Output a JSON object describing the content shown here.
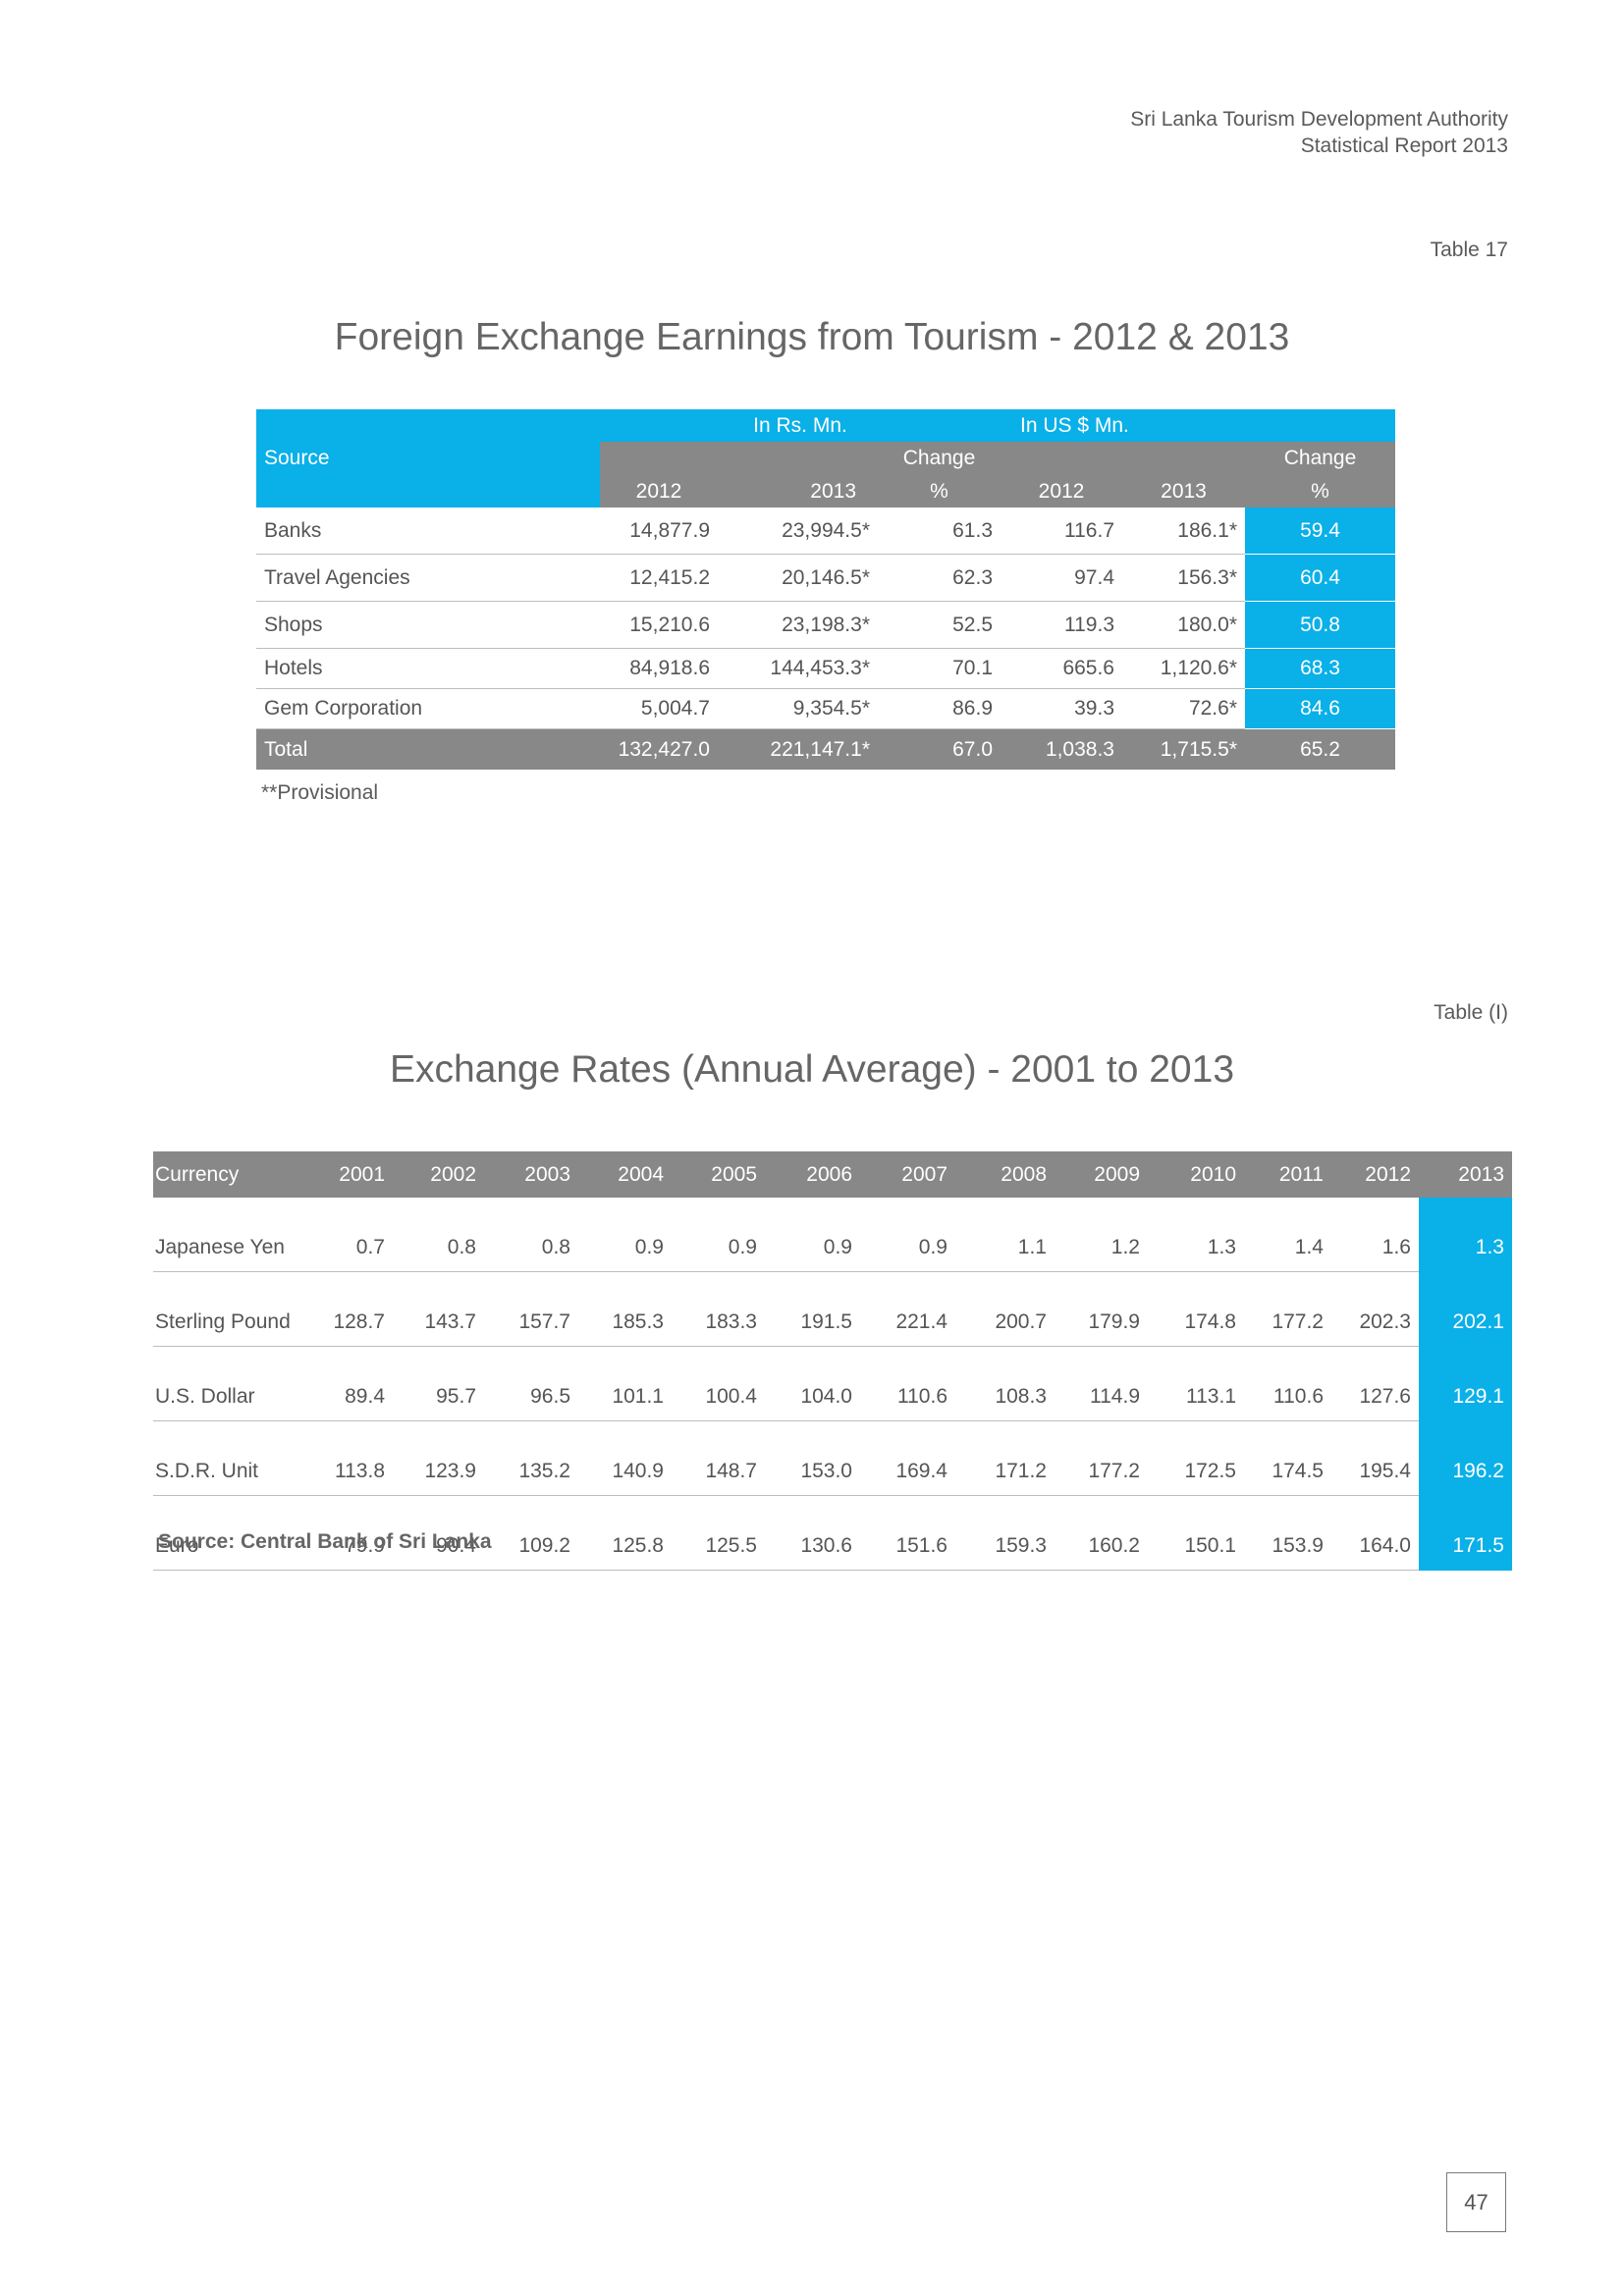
{
  "header": {
    "org": "Sri Lanka Tourism Development Authority",
    "report": "Statistical Report 2013"
  },
  "table17": {
    "label": "Table 17",
    "title": "Foreign Exchange Earnings from Tourism - 2012 & 2013",
    "group_rs": "In Rs. Mn.",
    "group_us": "In US $ Mn.",
    "source_header": "Source",
    "change_word": "Change",
    "pct": "%",
    "y2012": "2012",
    "y2013": "2013",
    "rows": [
      {
        "source": "Banks",
        "rs2012": "14,877.9",
        "rs2013": "23,994.5*",
        "rs_change": "61.3",
        "us2012": "116.7",
        "us2013": "186.1*",
        "us_change": "59.4"
      },
      {
        "source": "Travel Agencies",
        "rs2012": "12,415.2",
        "rs2013": "20,146.5*",
        "rs_change": "62.3",
        "us2012": "97.4",
        "us2013": "156.3*",
        "us_change": "60.4"
      },
      {
        "source": "Shops",
        "rs2012": "15,210.6",
        "rs2013": "23,198.3*",
        "rs_change": "52.5",
        "us2012": "119.3",
        "us2013": "180.0*",
        "us_change": "50.8"
      },
      {
        "source": "Hotels",
        "rs2012": "84,918.6",
        "rs2013": "144,453.3*",
        "rs_change": "70.1",
        "us2012": "665.6",
        "us2013": "1,120.6*",
        "us_change": "68.3"
      },
      {
        "source": "Gem Corporation",
        "rs2012": "5,004.7",
        "rs2013": "9,354.5*",
        "rs_change": "86.9",
        "us2012": "39.3",
        "us2013": "72.6*",
        "us_change": "84.6"
      }
    ],
    "total": {
      "source": "Total",
      "rs2012": "132,427.0",
      "rs2013": "221,147.1*",
      "rs_change": "67.0",
      "us2012": "1,038.3",
      "us2013": "1,715.5*",
      "us_change": "65.2"
    },
    "footnote": "**Provisional"
  },
  "exchange": {
    "label": "Table (I)",
    "title": "Exchange Rates (Annual Average) - 2001 to 2013",
    "currency_header": "Currency",
    "years": [
      "2001",
      "2002",
      "2003",
      "2004",
      "2005",
      "2006",
      "2007",
      "2008",
      "2009",
      "2010",
      "2011",
      "2012",
      "2013"
    ],
    "rows": [
      {
        "currency": "Japanese Yen",
        "values": [
          "0.7",
          "0.8",
          "0.8",
          "0.9",
          "0.9",
          "0.9",
          "0.9",
          "1.1",
          "1.2",
          "1.3",
          "1.4",
          "1.6",
          "1.3"
        ]
      },
      {
        "currency": "Sterling Pound",
        "values": [
          "128.7",
          "143.7",
          "157.7",
          "185.3",
          "183.3",
          "191.5",
          "221.4",
          "200.7",
          "179.9",
          "174.8",
          "177.2",
          "202.3",
          "202.1"
        ]
      },
      {
        "currency": "U.S. Dollar",
        "values": [
          "89.4",
          "95.7",
          "96.5",
          "101.1",
          "100.4",
          "104.0",
          "110.6",
          "108.3",
          "114.9",
          "113.1",
          "110.6",
          "127.6",
          "129.1"
        ]
      },
      {
        "currency": "S.D.R. Unit",
        "values": [
          "113.8",
          "123.9",
          "135.2",
          "140.9",
          "148.7",
          "153.0",
          "169.4",
          "171.2",
          "177.2",
          "172.5",
          "174.5",
          "195.4",
          "196.2"
        ]
      },
      {
        "currency": "Euro",
        "values": [
          "79.9",
          "90.4",
          "109.2",
          "125.8",
          "125.5",
          "130.6",
          "151.6",
          "159.3",
          "160.2",
          "150.1",
          "153.9",
          "164.0",
          "171.5"
        ]
      }
    ],
    "source": "Source: Central Bank of Sri Lanka"
  },
  "page_number": "47"
}
